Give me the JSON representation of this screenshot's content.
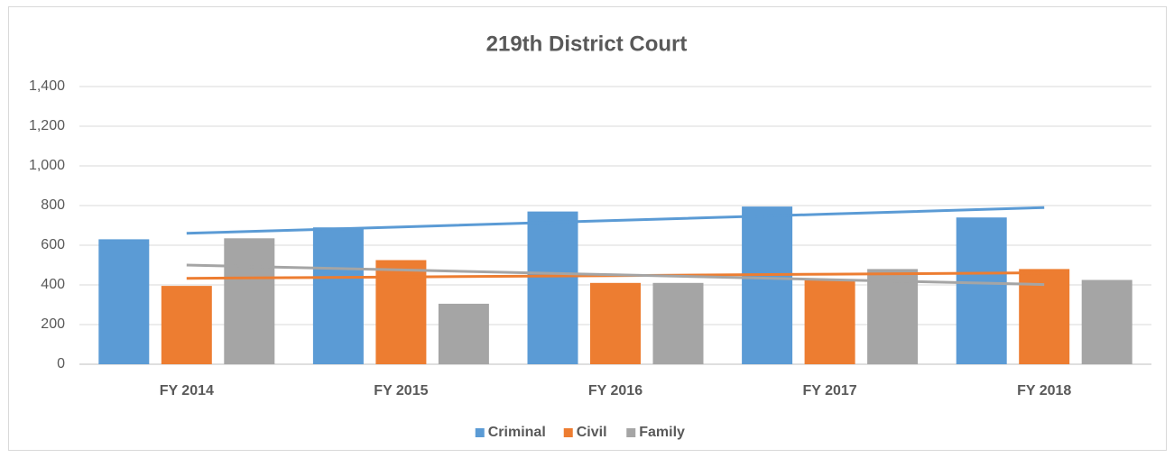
{
  "chart_data": {
    "type": "bar",
    "title": "219th District Court",
    "categories": [
      "FY 2014",
      "FY 2015",
      "FY 2016",
      "FY 2017",
      "FY 2018"
    ],
    "series": [
      {
        "name": "Criminal",
        "color": "#5b9bd5",
        "values": [
          630,
          690,
          770,
          795,
          740
        ]
      },
      {
        "name": "Civil",
        "color": "#ed7d31",
        "values": [
          395,
          525,
          410,
          425,
          480
        ]
      },
      {
        "name": "Family",
        "color": "#a5a5a5",
        "values": [
          635,
          305,
          410,
          480,
          425
        ]
      }
    ],
    "trendline": "linear",
    "ylim": [
      0,
      1400
    ],
    "yticks": [
      0,
      200,
      400,
      600,
      800,
      {
        "value": 1000,
        "label": "1,000"
      },
      {
        "value": 1200,
        "label": "1,200"
      },
      {
        "value": 1400,
        "label": "1,400"
      }
    ],
    "grid": true,
    "legend": "bottom"
  }
}
